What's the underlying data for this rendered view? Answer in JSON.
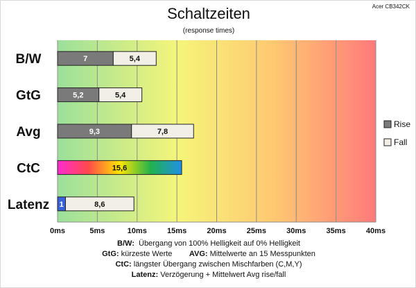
{
  "header": {
    "title": "Schaltzeiten",
    "subtitle": "(response times)",
    "monitor": "Acer CB342CK"
  },
  "chart_data": {
    "type": "bar",
    "orientation": "horizontal",
    "stacked": true,
    "title": "Schaltzeiten",
    "subtitle": "(response times)",
    "categories": [
      "B/W",
      "GtG",
      "Avg",
      "CtC",
      "Latenz"
    ],
    "series": [
      {
        "name": "Rise",
        "values": [
          7,
          5.2,
          9.3,
          15.6,
          1
        ],
        "labels": [
          "7",
          "5,2",
          "9,3",
          "15,6",
          "1"
        ]
      },
      {
        "name": "Fall",
        "values": [
          5.4,
          5.4,
          7.8,
          null,
          8.6
        ],
        "labels": [
          "5,4",
          "5,4",
          "7,8",
          "",
          "8,6"
        ]
      }
    ],
    "xlim": [
      0,
      40
    ],
    "xticks": [
      0,
      5,
      10,
      15,
      20,
      25,
      30,
      35,
      40
    ],
    "xtick_labels": [
      "0ms",
      "5ms",
      "10ms",
      "15ms",
      "20ms",
      "25ms",
      "30ms",
      "35ms",
      "40ms"
    ],
    "grid": true,
    "legend": {
      "position": "right",
      "entries": [
        "Rise",
        "Fall"
      ]
    },
    "background_gradient": [
      "#9be09b",
      "#f5f57a",
      "#ffc872",
      "#ff7a7a"
    ],
    "colors": {
      "rise": "#7a7a7a",
      "fall": "#f1efe6",
      "latency": "#3b63d9"
    }
  },
  "notes": [
    {
      "key": "B/W",
      "text": "Übergang von 100% Helligkeit auf 0% Helligkeit"
    },
    {
      "key": "GtG",
      "text": "kürzeste  Werte",
      "key2": "AVG:",
      "text2": "Mittelwerte  an 15 Messpunkten"
    },
    {
      "key": "CtC",
      "text": "längster Übergang  zwischen Mischfarben (C,M,Y)"
    },
    {
      "key": "Latenz",
      "text": "Verzögerung  + Mittelwert  Avg rise/fall"
    }
  ]
}
